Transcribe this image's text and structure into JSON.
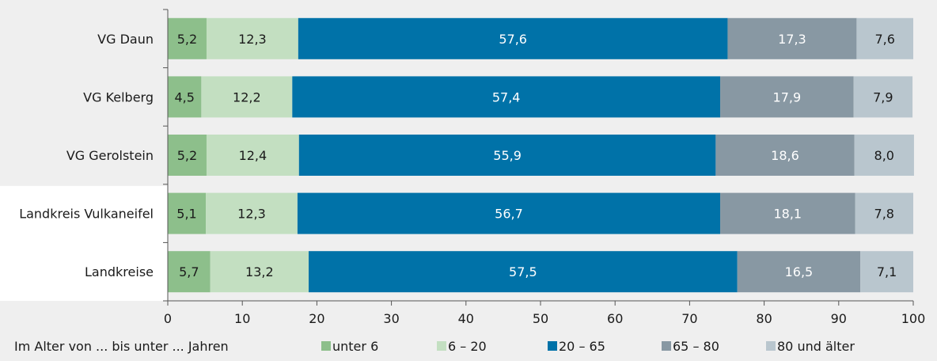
{
  "chart_data": {
    "type": "bar",
    "orientation": "horizontal",
    "stacked": true,
    "categories": [
      "VG Daun",
      "VG Kelberg",
      "VG Gerolstein",
      "Landkreis Vulkaneifel",
      "Landkreise"
    ],
    "series": [
      {
        "name": "unter 6",
        "color": "#8dbf8b",
        "values": [
          5.2,
          4.5,
          5.2,
          5.1,
          5.7
        ]
      },
      {
        "name": "6 – 20",
        "color": "#c3dfc1",
        "values": [
          12.3,
          12.2,
          12.4,
          12.3,
          13.2
        ]
      },
      {
        "name": "20 – 65",
        "color": "#0072a8",
        "values": [
          57.6,
          57.4,
          55.9,
          56.7,
          57.5
        ]
      },
      {
        "name": "65 – 80",
        "color": "#8898a3",
        "values": [
          17.3,
          17.9,
          18.6,
          18.1,
          16.5
        ]
      },
      {
        "name": "80 und älter",
        "color": "#b9c6ce",
        "values": [
          7.6,
          7.9,
          8.0,
          7.8,
          7.1
        ]
      }
    ],
    "label_colors": [
      "#1a1a1a",
      "#1a1a1a",
      "#ffffff",
      "#ffffff",
      "#1a1a1a"
    ],
    "xlim": [
      0,
      100
    ],
    "xticks": [
      0,
      10,
      20,
      30,
      40,
      50,
      60,
      70,
      80,
      90,
      100
    ],
    "legend_title": "Im Alter von ... bis unter ... Jahren",
    "legend_position": "bottom",
    "highlighted_background_categories": [
      "Landkreis Vulkaneifel",
      "Landkreise"
    ],
    "background_color": "#efefef",
    "highlight_color": "#ffffff"
  }
}
